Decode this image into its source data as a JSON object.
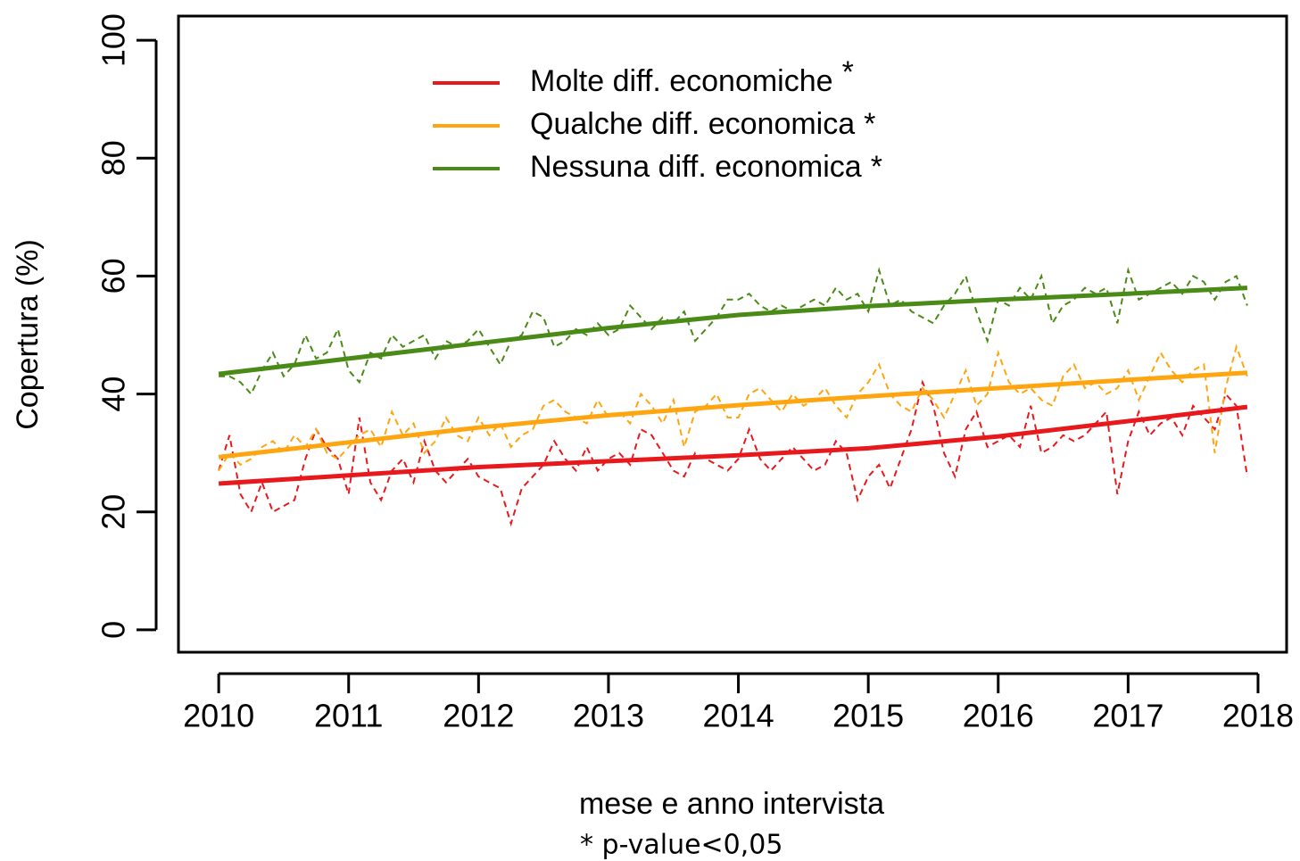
{
  "chart_data": {
    "type": "line",
    "ylabel": "Copertura (%)",
    "xlabel": "mese e anno intervista",
    "footnote": "* p-value<0,05",
    "xlim": [
      2009.69,
      2018.22
    ],
    "ylim": [
      -3.8,
      104.1
    ],
    "xticks": [
      2010,
      2011,
      2012,
      2013,
      2014,
      2015,
      2016,
      2017,
      2018
    ],
    "yticks": [
      0,
      20,
      40,
      60,
      80,
      100
    ],
    "x": [
      2010,
      2010.083,
      2010.167,
      2010.25,
      2010.333,
      2010.417,
      2010.5,
      2010.583,
      2010.667,
      2010.75,
      2010.833,
      2010.917,
      2011,
      2011.083,
      2011.167,
      2011.25,
      2011.333,
      2011.417,
      2011.5,
      2011.583,
      2011.667,
      2011.75,
      2011.833,
      2011.917,
      2012,
      2012.083,
      2012.167,
      2012.25,
      2012.333,
      2012.417,
      2012.5,
      2012.583,
      2012.667,
      2012.75,
      2012.833,
      2012.917,
      2013,
      2013.083,
      2013.167,
      2013.25,
      2013.333,
      2013.417,
      2013.5,
      2013.583,
      2013.667,
      2013.75,
      2013.833,
      2013.917,
      2014,
      2014.083,
      2014.167,
      2014.25,
      2014.333,
      2014.417,
      2014.5,
      2014.583,
      2014.667,
      2014.75,
      2014.833,
      2014.917,
      2015,
      2015.083,
      2015.167,
      2015.25,
      2015.333,
      2015.417,
      2015.5,
      2015.583,
      2015.667,
      2015.75,
      2015.833,
      2015.917,
      2016,
      2016.083,
      2016.167,
      2016.25,
      2016.333,
      2016.417,
      2016.5,
      2016.583,
      2016.667,
      2016.75,
      2016.833,
      2016.917,
      2017,
      2017.083,
      2017.167,
      2017.25,
      2017.333,
      2017.417,
      2017.5,
      2017.583,
      2017.667,
      2017.75,
      2017.833,
      2017.917
    ],
    "trend_x": [
      2010,
      2011,
      2012,
      2013,
      2014,
      2015,
      2016,
      2017,
      2017.917
    ],
    "series": [
      {
        "name": "Molte diff. economiche",
        "significance_mark": "*",
        "color": "#e8191d",
        "values": [
          27,
          33,
          23,
          20,
          25,
          20,
          21,
          22,
          29,
          34,
          31,
          29,
          23,
          36,
          25,
          22,
          27,
          29,
          25,
          32,
          27,
          25,
          27,
          29,
          26,
          25,
          24,
          18,
          24,
          26,
          28,
          32,
          29,
          27,
          31,
          27,
          29,
          30,
          28,
          34,
          33,
          30,
          27,
          26,
          30,
          29,
          28,
          27,
          29,
          34,
          29,
          27,
          29,
          31,
          29,
          27,
          28,
          32,
          30,
          22,
          26,
          28,
          24,
          29,
          34,
          42,
          38,
          30,
          26,
          34,
          37,
          31,
          32,
          33,
          31,
          38,
          30,
          31,
          33,
          32,
          33,
          35,
          37,
          23,
          32,
          37,
          33,
          35,
          36,
          33,
          38,
          36,
          34,
          40,
          38,
          26
        ],
        "trend": [
          24.8,
          26.2,
          27.6,
          28.6,
          29.6,
          30.8,
          32.8,
          35.4,
          37.8
        ]
      },
      {
        "name": "Qualche diff. economica",
        "significance_mark": "*",
        "color": "#ffa50f",
        "values": [
          27,
          30,
          28,
          29,
          31,
          32,
          30,
          33,
          31,
          34,
          30,
          29,
          31,
          33,
          34,
          31,
          37,
          33,
          35,
          30,
          32,
          36,
          33,
          32,
          36,
          33,
          35,
          31,
          33,
          34,
          38,
          39,
          37,
          36,
          35,
          39,
          36,
          37,
          35,
          40,
          38,
          35,
          39,
          31,
          37,
          38,
          40,
          36,
          36,
          40,
          41,
          39,
          37,
          40,
          38,
          39,
          41,
          38,
          36,
          40,
          42,
          45,
          40,
          38,
          37,
          41,
          39,
          36,
          40,
          44,
          38,
          40,
          47,
          42,
          40,
          41,
          39,
          38,
          43,
          45,
          41,
          42,
          40,
          41,
          44,
          39,
          43,
          47,
          44,
          42,
          44,
          45,
          30,
          41,
          48,
          43
        ],
        "trend": [
          29.3,
          31.8,
          34.3,
          36.4,
          38.1,
          39.6,
          41.0,
          42.4,
          43.6
        ]
      },
      {
        "name": "Nessuna diff. economica",
        "significance_mark": "*",
        "color": "#4a8a17",
        "values": [
          43,
          43,
          42,
          40,
          44,
          47,
          43,
          45,
          50,
          46,
          47,
          51,
          44,
          42,
          47,
          46,
          50,
          48,
          49,
          50,
          46,
          49,
          48,
          49,
          51,
          48,
          45,
          49,
          50,
          54,
          53,
          48,
          49,
          51,
          50,
          52,
          50,
          51,
          55,
          53,
          51,
          53,
          52,
          54,
          49,
          51,
          53,
          56,
          56,
          57,
          55,
          54,
          55,
          54,
          55,
          56,
          55,
          58,
          56,
          57,
          54,
          61,
          55,
          56,
          54,
          53,
          52,
          55,
          57,
          60,
          54,
          49,
          56,
          55,
          58,
          56,
          60,
          52,
          55,
          56,
          58,
          57,
          58,
          52,
          61,
          56,
          57,
          58,
          59,
          57,
          60,
          59,
          56,
          59,
          60,
          55
        ],
        "trend": [
          43.4,
          46.0,
          48.6,
          51.2,
          53.4,
          54.9,
          56.0,
          57.0,
          58.0
        ]
      }
    ]
  }
}
